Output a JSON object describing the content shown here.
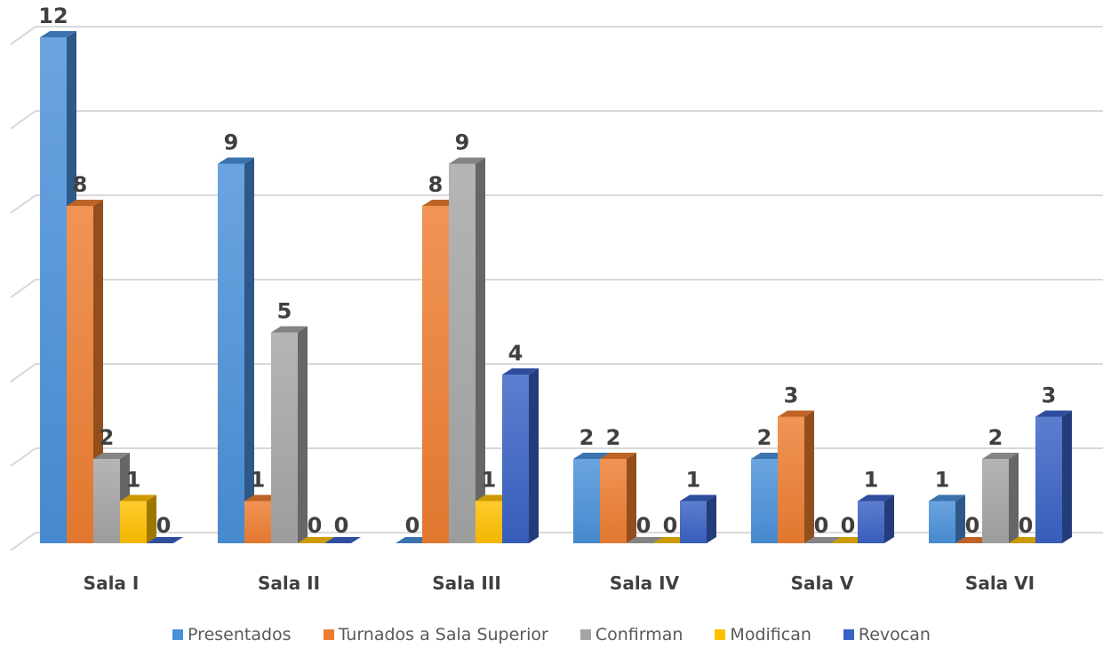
{
  "chart_data": {
    "type": "bar",
    "categories": [
      "Sala I",
      "Sala II",
      "Sala III",
      "Sala IV",
      "Sala V",
      "Sala VI"
    ],
    "series": [
      {
        "name": "Presentados",
        "values": [
          12,
          9,
          0,
          2,
          2,
          1
        ],
        "color": "#4a90d9"
      },
      {
        "name": "Turnados a Sala Superior",
        "values": [
          8,
          1,
          8,
          2,
          3,
          0
        ],
        "color": "#ed7d31"
      },
      {
        "name": "Confirman",
        "values": [
          2,
          5,
          9,
          0,
          0,
          2
        ],
        "color": "#a5a5a5"
      },
      {
        "name": "Modifican",
        "values": [
          1,
          0,
          1,
          0,
          0,
          0
        ],
        "color": "#ffc000"
      },
      {
        "name": "Revocan",
        "values": [
          0,
          0,
          4,
          1,
          1,
          3
        ],
        "color": "#3a62c4"
      }
    ],
    "ylim": [
      0,
      12
    ],
    "grid": true,
    "three_d": true,
    "legend_position": "bottom"
  }
}
